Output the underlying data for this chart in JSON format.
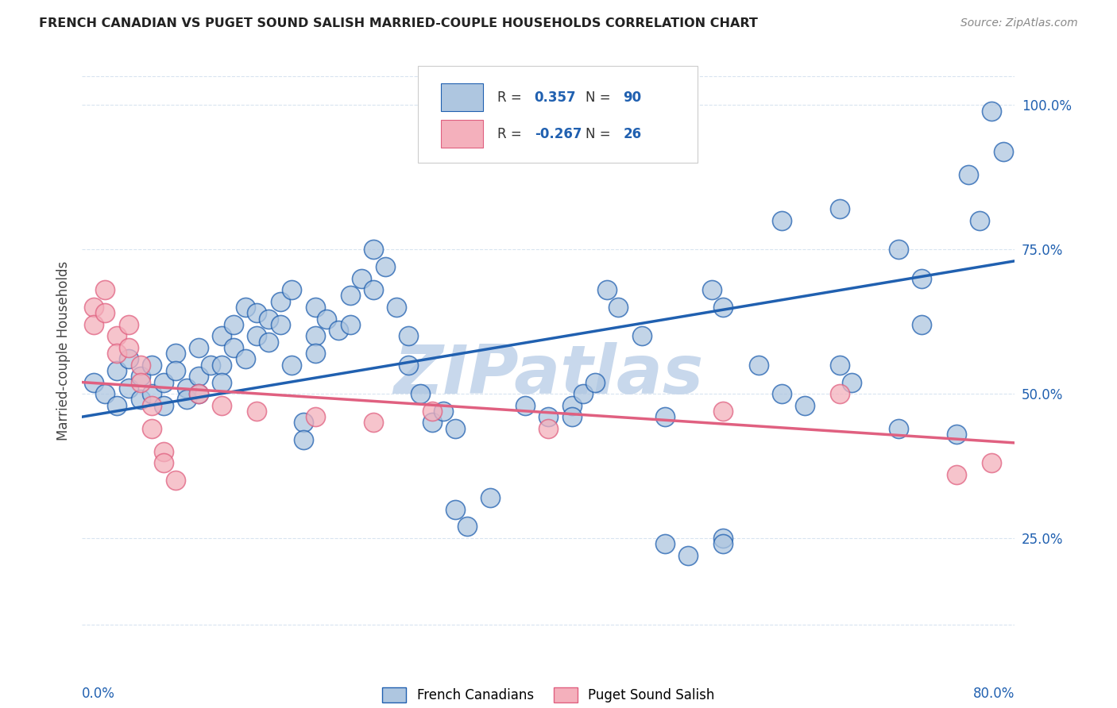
{
  "title": "FRENCH CANADIAN VS PUGET SOUND SALISH MARRIED-COUPLE HOUSEHOLDS CORRELATION CHART",
  "source": "Source: ZipAtlas.com",
  "ylabel": "Married-couple Households",
  "ytick_labels": [
    "100.0%",
    "75.0%",
    "50.0%",
    "25.0%"
  ],
  "ytick_values": [
    1.0,
    0.75,
    0.5,
    0.25
  ],
  "xlim": [
    0.0,
    0.08
  ],
  "ylim": [
    0.05,
    1.1
  ],
  "x_left_label": "0.0%",
  "x_right_label": "80.0%",
  "legend_label1": "French Canadians",
  "legend_label2": "Puget Sound Salish",
  "r1": 0.357,
  "n1": 90,
  "r2": -0.267,
  "n2": 26,
  "blue_color": "#aec6e0",
  "blue_line_color": "#2060b0",
  "pink_color": "#f4b0bc",
  "pink_line_color": "#e06080",
  "blue_scatter": [
    [
      0.001,
      0.52
    ],
    [
      0.002,
      0.5
    ],
    [
      0.003,
      0.54
    ],
    [
      0.003,
      0.48
    ],
    [
      0.004,
      0.56
    ],
    [
      0.004,
      0.51
    ],
    [
      0.005,
      0.49
    ],
    [
      0.005,
      0.53
    ],
    [
      0.006,
      0.55
    ],
    [
      0.006,
      0.5
    ],
    [
      0.007,
      0.52
    ],
    [
      0.007,
      0.48
    ],
    [
      0.008,
      0.57
    ],
    [
      0.008,
      0.54
    ],
    [
      0.009,
      0.51
    ],
    [
      0.009,
      0.49
    ],
    [
      0.01,
      0.58
    ],
    [
      0.01,
      0.53
    ],
    [
      0.01,
      0.5
    ],
    [
      0.011,
      0.55
    ],
    [
      0.012,
      0.6
    ],
    [
      0.012,
      0.55
    ],
    [
      0.012,
      0.52
    ],
    [
      0.013,
      0.62
    ],
    [
      0.013,
      0.58
    ],
    [
      0.014,
      0.65
    ],
    [
      0.014,
      0.56
    ],
    [
      0.015,
      0.64
    ],
    [
      0.015,
      0.6
    ],
    [
      0.016,
      0.63
    ],
    [
      0.016,
      0.59
    ],
    [
      0.017,
      0.66
    ],
    [
      0.017,
      0.62
    ],
    [
      0.018,
      0.68
    ],
    [
      0.018,
      0.55
    ],
    [
      0.019,
      0.45
    ],
    [
      0.019,
      0.42
    ],
    [
      0.02,
      0.65
    ],
    [
      0.02,
      0.6
    ],
    [
      0.02,
      0.57
    ],
    [
      0.021,
      0.63
    ],
    [
      0.022,
      0.61
    ],
    [
      0.023,
      0.67
    ],
    [
      0.023,
      0.62
    ],
    [
      0.024,
      0.7
    ],
    [
      0.025,
      0.75
    ],
    [
      0.025,
      0.68
    ],
    [
      0.026,
      0.72
    ],
    [
      0.027,
      0.65
    ],
    [
      0.028,
      0.6
    ],
    [
      0.028,
      0.55
    ],
    [
      0.029,
      0.5
    ],
    [
      0.03,
      0.45
    ],
    [
      0.031,
      0.47
    ],
    [
      0.032,
      0.44
    ],
    [
      0.032,
      0.3
    ],
    [
      0.033,
      0.27
    ],
    [
      0.035,
      0.32
    ],
    [
      0.038,
      0.48
    ],
    [
      0.04,
      0.46
    ],
    [
      0.042,
      0.48
    ],
    [
      0.042,
      0.46
    ],
    [
      0.043,
      0.5
    ],
    [
      0.044,
      0.52
    ],
    [
      0.045,
      0.68
    ],
    [
      0.046,
      0.65
    ],
    [
      0.048,
      0.6
    ],
    [
      0.05,
      0.46
    ],
    [
      0.05,
      0.24
    ],
    [
      0.052,
      0.22
    ],
    [
      0.054,
      0.68
    ],
    [
      0.055,
      0.65
    ],
    [
      0.058,
      0.55
    ],
    [
      0.06,
      0.5
    ],
    [
      0.062,
      0.48
    ],
    [
      0.065,
      0.55
    ],
    [
      0.066,
      0.52
    ],
    [
      0.07,
      0.44
    ],
    [
      0.072,
      0.62
    ],
    [
      0.075,
      0.43
    ],
    [
      0.055,
      0.25
    ],
    [
      0.055,
      0.24
    ],
    [
      0.06,
      0.8
    ],
    [
      0.065,
      0.82
    ],
    [
      0.07,
      0.75
    ],
    [
      0.072,
      0.7
    ],
    [
      0.076,
      0.88
    ],
    [
      0.078,
      0.99
    ],
    [
      0.079,
      0.92
    ],
    [
      0.077,
      0.8
    ]
  ],
  "pink_scatter": [
    [
      0.001,
      0.65
    ],
    [
      0.001,
      0.62
    ],
    [
      0.002,
      0.68
    ],
    [
      0.002,
      0.64
    ],
    [
      0.003,
      0.6
    ],
    [
      0.003,
      0.57
    ],
    [
      0.004,
      0.62
    ],
    [
      0.004,
      0.58
    ],
    [
      0.005,
      0.55
    ],
    [
      0.005,
      0.52
    ],
    [
      0.006,
      0.48
    ],
    [
      0.006,
      0.44
    ],
    [
      0.007,
      0.4
    ],
    [
      0.007,
      0.38
    ],
    [
      0.008,
      0.35
    ],
    [
      0.01,
      0.5
    ],
    [
      0.012,
      0.48
    ],
    [
      0.015,
      0.47
    ],
    [
      0.02,
      0.46
    ],
    [
      0.025,
      0.45
    ],
    [
      0.03,
      0.47
    ],
    [
      0.04,
      0.44
    ],
    [
      0.055,
      0.47
    ],
    [
      0.065,
      0.5
    ],
    [
      0.075,
      0.36
    ],
    [
      0.078,
      0.38
    ]
  ],
  "watermark": "ZIPatlas",
  "watermark_color": "#c8d8ec",
  "background_color": "#ffffff",
  "grid_color": "#d8e4f0",
  "blue_trend": [
    0.0,
    0.08,
    0.46,
    0.73
  ],
  "pink_trend": [
    0.0,
    0.08,
    0.52,
    0.415
  ]
}
